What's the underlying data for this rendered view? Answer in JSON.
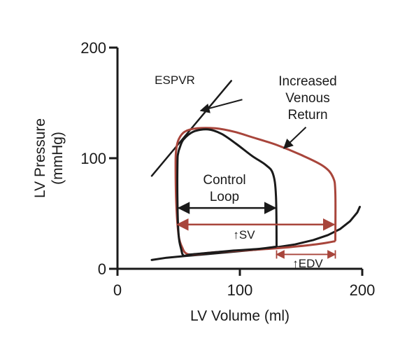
{
  "chart_data": {
    "type": "line",
    "xlabel": "LV Volume (ml)",
    "ylabel": "LV Pressure",
    "ylabel_unit": "(mmHg)",
    "xlim": [
      0,
      200
    ],
    "ylim": [
      0,
      200
    ],
    "xticks": [
      {
        "value": 0,
        "label": "0"
      },
      {
        "value": 100,
        "label": "100"
      },
      {
        "value": 200,
        "label": "200"
      }
    ],
    "yticks": [
      {
        "value": 0,
        "label": "0"
      },
      {
        "value": 100,
        "label": "100"
      },
      {
        "value": 200,
        "label": "200"
      }
    ],
    "colors": {
      "control": "#1a1a1a",
      "increased": "#a8453b",
      "axis": "#1a1a1a"
    },
    "espvr": {
      "label": "ESPVR",
      "x": [
        28,
        93
      ],
      "y": [
        84,
        170
      ]
    },
    "edpvr": {
      "x": [
        28,
        40,
        55,
        70,
        85,
        100,
        115,
        130,
        145,
        160,
        172,
        182,
        190,
        196,
        198
      ],
      "y": [
        8,
        10,
        11.5,
        13,
        14.5,
        16,
        17.5,
        19.5,
        22,
        26,
        30.5,
        36,
        43,
        51,
        56
      ]
    },
    "series": [
      {
        "label": "Control Loop",
        "x": [
          130,
          129.5,
          127,
          121,
          110,
          97,
          85,
          74,
          62,
          54,
          51,
          49.5,
          49,
          49,
          50,
          52,
          54,
          60,
          75,
          95,
          115,
          130
        ],
        "y": [
          20,
          66,
          86,
          94,
          102,
          113,
          122,
          126,
          124,
          117,
          110,
          104,
          96,
          60,
          30,
          18,
          12,
          13,
          14.5,
          16.5,
          18,
          20
        ]
      },
      {
        "label": "Increased Venous Return",
        "x": [
          178,
          178,
          176,
          168,
          150,
          130,
          110,
          95,
          80,
          65,
          55,
          50,
          48,
          47.5,
          48,
          50,
          53,
          56,
          62,
          80,
          110,
          140,
          165,
          178
        ],
        "y": [
          25,
          69,
          83,
          93,
          103,
          112,
          119,
          124,
          127,
          127,
          124,
          117,
          108,
          96,
          60,
          30,
          19,
          14,
          13,
          15,
          17,
          19.5,
          22.5,
          25
        ]
      }
    ],
    "annotations": [
      {
        "text": "Increased",
        "line": 1
      },
      {
        "text": "Venous",
        "line": 2
      },
      {
        "text": "Return",
        "line": 3
      },
      {
        "text": "Control",
        "line": 1
      },
      {
        "text": "Loop",
        "line": 2
      },
      {
        "text": "↑SV"
      },
      {
        "text": "↑EDV"
      }
    ],
    "arrows": {
      "control_width": {
        "x": [
          50,
          129
        ],
        "y": 55
      },
      "sv": {
        "x": [
          49,
          177
        ],
        "y": 40
      },
      "edv": {
        "x": [
          130,
          178
        ],
        "y": 13
      },
      "espvr_pointer": {
        "from": [
          102,
          153
        ],
        "to": [
          68,
          143
        ]
      },
      "ivr_pointer": {
        "from": [
          154,
          128
        ],
        "to": [
          136,
          109
        ]
      }
    },
    "grid": false,
    "legend": "none"
  }
}
